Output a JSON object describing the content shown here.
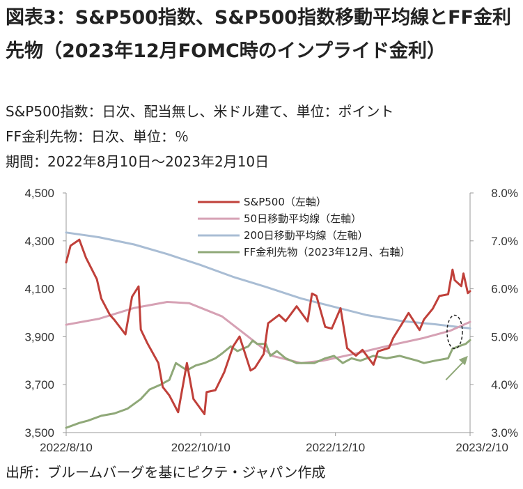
{
  "header": {
    "title": "図表3：S&P500指数、S&P500指数移動平均線とFF金利先物（2023年12月FOMC時のインプライド金利）",
    "note1": "S&P500指数：日次、配当無し、米ドル建て、単位：ポイント",
    "note2": "FF金利先物：日次、単位：％",
    "note3": "期間：2022年8月10日～2023年2月10日"
  },
  "footer": {
    "source": "出所：ブルームバーグを基にピクテ・ジャパン作成"
  },
  "chart_data": {
    "type": "line",
    "x_labels": [
      "2022/8/10",
      "2022/10/10",
      "2022/12/10",
      "2023/2/10"
    ],
    "x_range": [
      "2022-08-10",
      "2023-02-10"
    ],
    "ylim_left": [
      3500,
      4500
    ],
    "yticks_left": [
      "3,500",
      "3,700",
      "3,900",
      "4,100",
      "4,300",
      "4,500"
    ],
    "ylim_right": [
      3.0,
      8.0
    ],
    "yticks_right": [
      "3.0%",
      "4.0%",
      "5.0%",
      "6.0%",
      "7.0%",
      "8.0%"
    ],
    "legend_position": "top-right",
    "grid": false,
    "colors": {
      "sp500": "#c0403a",
      "ma50": "#d6a1b4",
      "ma200": "#a9bdd4",
      "ff": "#8fa878",
      "annotation": "#8fa878"
    },
    "series": [
      {
        "name": "S&P500（左軸）",
        "axis": "left",
        "key": "sp500",
        "points": [
          [
            "2022-08-10",
            4210
          ],
          [
            "2022-08-12",
            4280
          ],
          [
            "2022-08-16",
            4305
          ],
          [
            "2022-08-19",
            4230
          ],
          [
            "2022-08-24",
            4140
          ],
          [
            "2022-08-26",
            4060
          ],
          [
            "2022-08-30",
            3990
          ],
          [
            "2022-09-01",
            3970
          ],
          [
            "2022-09-06",
            3910
          ],
          [
            "2022-09-09",
            4067
          ],
          [
            "2022-09-12",
            4110
          ],
          [
            "2022-09-13",
            3930
          ],
          [
            "2022-09-16",
            3873
          ],
          [
            "2022-09-21",
            3790
          ],
          [
            "2022-09-23",
            3690
          ],
          [
            "2022-09-26",
            3655
          ],
          [
            "2022-09-30",
            3585
          ],
          [
            "2022-10-04",
            3790
          ],
          [
            "2022-10-07",
            3640
          ],
          [
            "2022-10-12",
            3577
          ],
          [
            "2022-10-13",
            3669
          ],
          [
            "2022-10-17",
            3677
          ],
          [
            "2022-10-21",
            3752
          ],
          [
            "2022-10-25",
            3859
          ],
          [
            "2022-10-28",
            3901
          ],
          [
            "2022-11-02",
            3759
          ],
          [
            "2022-11-04",
            3770
          ],
          [
            "2022-11-08",
            3828
          ],
          [
            "2022-11-10",
            3956
          ],
          [
            "2022-11-15",
            3991
          ],
          [
            "2022-11-18",
            3965
          ],
          [
            "2022-11-23",
            4027
          ],
          [
            "2022-11-28",
            3964
          ],
          [
            "2022-11-30",
            4080
          ],
          [
            "2022-12-02",
            4071
          ],
          [
            "2022-12-06",
            3941
          ],
          [
            "2022-12-09",
            3934
          ],
          [
            "2022-12-13",
            4019
          ],
          [
            "2022-12-16",
            3852
          ],
          [
            "2022-12-20",
            3821
          ],
          [
            "2022-12-23",
            3845
          ],
          [
            "2022-12-28",
            3783
          ],
          [
            "2022-12-30",
            3839
          ],
          [
            "2023-01-04",
            3853
          ],
          [
            "2023-01-06",
            3895
          ],
          [
            "2023-01-11",
            3969
          ],
          [
            "2023-01-13",
            3999
          ],
          [
            "2023-01-18",
            3928
          ],
          [
            "2023-01-20",
            3972
          ],
          [
            "2023-01-24",
            4017
          ],
          [
            "2023-01-27",
            4070
          ],
          [
            "2023-01-31",
            4077
          ],
          [
            "2023-02-02",
            4180
          ],
          [
            "2023-02-03",
            4136
          ],
          [
            "2023-02-06",
            4111
          ],
          [
            "2023-02-07",
            4164
          ],
          [
            "2023-02-09",
            4082
          ],
          [
            "2023-02-10",
            4090
          ]
        ]
      },
      {
        "name": "50日移動平均線（左軸）",
        "axis": "left",
        "key": "ma50",
        "points": [
          [
            "2022-08-10",
            3950
          ],
          [
            "2022-08-25",
            3975
          ],
          [
            "2022-09-10",
            4020
          ],
          [
            "2022-09-25",
            4045
          ],
          [
            "2022-10-05",
            4040
          ],
          [
            "2022-10-20",
            3985
          ],
          [
            "2022-11-01",
            3900
          ],
          [
            "2022-11-12",
            3820
          ],
          [
            "2022-11-25",
            3790
          ],
          [
            "2022-12-05",
            3800
          ],
          [
            "2022-12-20",
            3830
          ],
          [
            "2023-01-05",
            3865
          ],
          [
            "2023-01-20",
            3895
          ],
          [
            "2023-02-01",
            3925
          ],
          [
            "2023-02-10",
            3962
          ]
        ]
      },
      {
        "name": "200日移動平均線（左軸）",
        "axis": "left",
        "key": "ma200",
        "points": [
          [
            "2022-08-10",
            4335
          ],
          [
            "2022-08-25",
            4315
          ],
          [
            "2022-09-10",
            4285
          ],
          [
            "2022-09-25",
            4245
          ],
          [
            "2022-10-10",
            4200
          ],
          [
            "2022-10-25",
            4150
          ],
          [
            "2022-11-10",
            4105
          ],
          [
            "2022-11-25",
            4060
          ],
          [
            "2022-12-10",
            4025
          ],
          [
            "2022-12-25",
            3990
          ],
          [
            "2023-01-10",
            3965
          ],
          [
            "2023-01-25",
            3952
          ],
          [
            "2023-02-10",
            3935
          ]
        ]
      },
      {
        "name": "FF金利先物（2023年12月、右軸）",
        "axis": "right",
        "key": "ff",
        "points": [
          [
            "2022-08-10",
            3.1
          ],
          [
            "2022-08-16",
            3.2
          ],
          [
            "2022-08-20",
            3.25
          ],
          [
            "2022-08-26",
            3.35
          ],
          [
            "2022-09-01",
            3.4
          ],
          [
            "2022-09-07",
            3.5
          ],
          [
            "2022-09-13",
            3.7
          ],
          [
            "2022-09-17",
            3.9
          ],
          [
            "2022-09-22",
            4.0
          ],
          [
            "2022-09-26",
            4.1
          ],
          [
            "2022-09-29",
            4.45
          ],
          [
            "2022-10-04",
            4.3
          ],
          [
            "2022-10-08",
            4.4
          ],
          [
            "2022-10-12",
            4.45
          ],
          [
            "2022-10-17",
            4.55
          ],
          [
            "2022-10-20",
            4.65
          ],
          [
            "2022-10-24",
            4.8
          ],
          [
            "2022-10-27",
            4.7
          ],
          [
            "2022-11-01",
            4.8
          ],
          [
            "2022-11-03",
            4.92
          ],
          [
            "2022-11-05",
            4.85
          ],
          [
            "2022-11-09",
            4.85
          ],
          [
            "2022-11-11",
            4.6
          ],
          [
            "2022-11-14",
            4.7
          ],
          [
            "2022-11-18",
            4.55
          ],
          [
            "2022-11-23",
            4.45
          ],
          [
            "2022-11-28",
            4.45
          ],
          [
            "2022-12-01",
            4.45
          ],
          [
            "2022-12-06",
            4.55
          ],
          [
            "2022-12-10",
            4.6
          ],
          [
            "2022-12-14",
            4.45
          ],
          [
            "2022-12-18",
            4.55
          ],
          [
            "2022-12-22",
            4.5
          ],
          [
            "2022-12-28",
            4.6
          ],
          [
            "2023-01-03",
            4.55
          ],
          [
            "2023-01-09",
            4.6
          ],
          [
            "2023-01-13",
            4.55
          ],
          [
            "2023-01-17",
            4.5
          ],
          [
            "2023-01-20",
            4.45
          ],
          [
            "2023-01-25",
            4.5
          ],
          [
            "2023-01-31",
            4.55
          ],
          [
            "2023-02-02",
            4.75
          ],
          [
            "2023-02-06",
            4.82
          ],
          [
            "2023-02-08",
            4.85
          ],
          [
            "2023-02-10",
            4.93
          ]
        ]
      }
    ],
    "annotations": [
      {
        "type": "ellipse-dashed",
        "date": "2023-02-03",
        "value_left": 3920
      },
      {
        "type": "arrow",
        "from": [
          "2023-01-30",
          4.1
        ],
        "to": [
          "2023-02-09",
          4.6
        ]
      }
    ]
  }
}
